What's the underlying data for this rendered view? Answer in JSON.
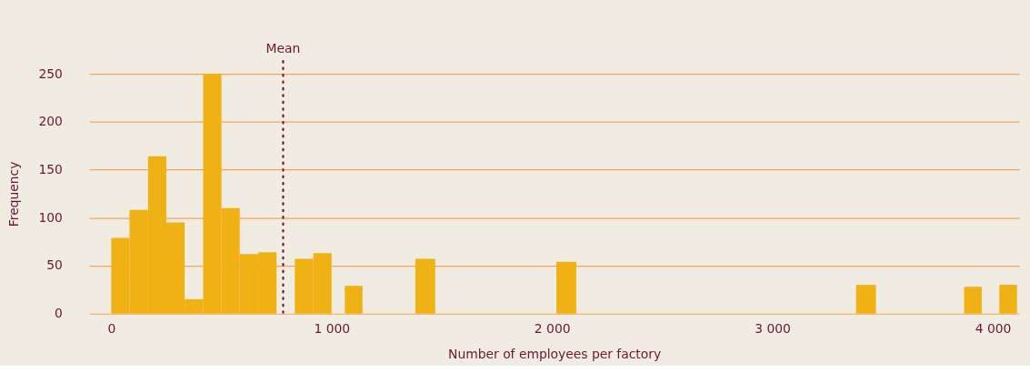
{
  "chart_data": {
    "type": "histogram",
    "xlabel": "Number of employees per factory",
    "ylabel": "Frequency",
    "bins": [
      0,
      83,
      167,
      250,
      333,
      417,
      500,
      583,
      667,
      750,
      833,
      917,
      1000,
      1060,
      1140,
      1380,
      1470,
      2020,
      2110,
      3380,
      3470,
      3870,
      3950,
      4030,
      4110
    ],
    "values": [
      79,
      108,
      164,
      95,
      15,
      250,
      110,
      62,
      64,
      0,
      57,
      63,
      0,
      29,
      0,
      57,
      0,
      54,
      0,
      30,
      0,
      28,
      0,
      30
    ],
    "color": "#f0b114",
    "xlim": [
      -100,
      4120
    ],
    "ylim": [
      0,
      250
    ],
    "xticks": [
      0,
      {
        "value": 1000,
        "label": "1 000"
      },
      {
        "value": 2000,
        "label": "2 000"
      },
      {
        "value": 3000,
        "label": "3 000"
      },
      {
        "value": 4000,
        "label": "4 000"
      }
    ],
    "yticks": [
      0,
      50,
      100,
      150,
      200,
      250
    ],
    "grid": "y",
    "ref_lines": [
      {
        "axis": "x",
        "value": 780,
        "label": "Mean",
        "color": "#6b1535",
        "line_style": "dotted"
      }
    ]
  }
}
